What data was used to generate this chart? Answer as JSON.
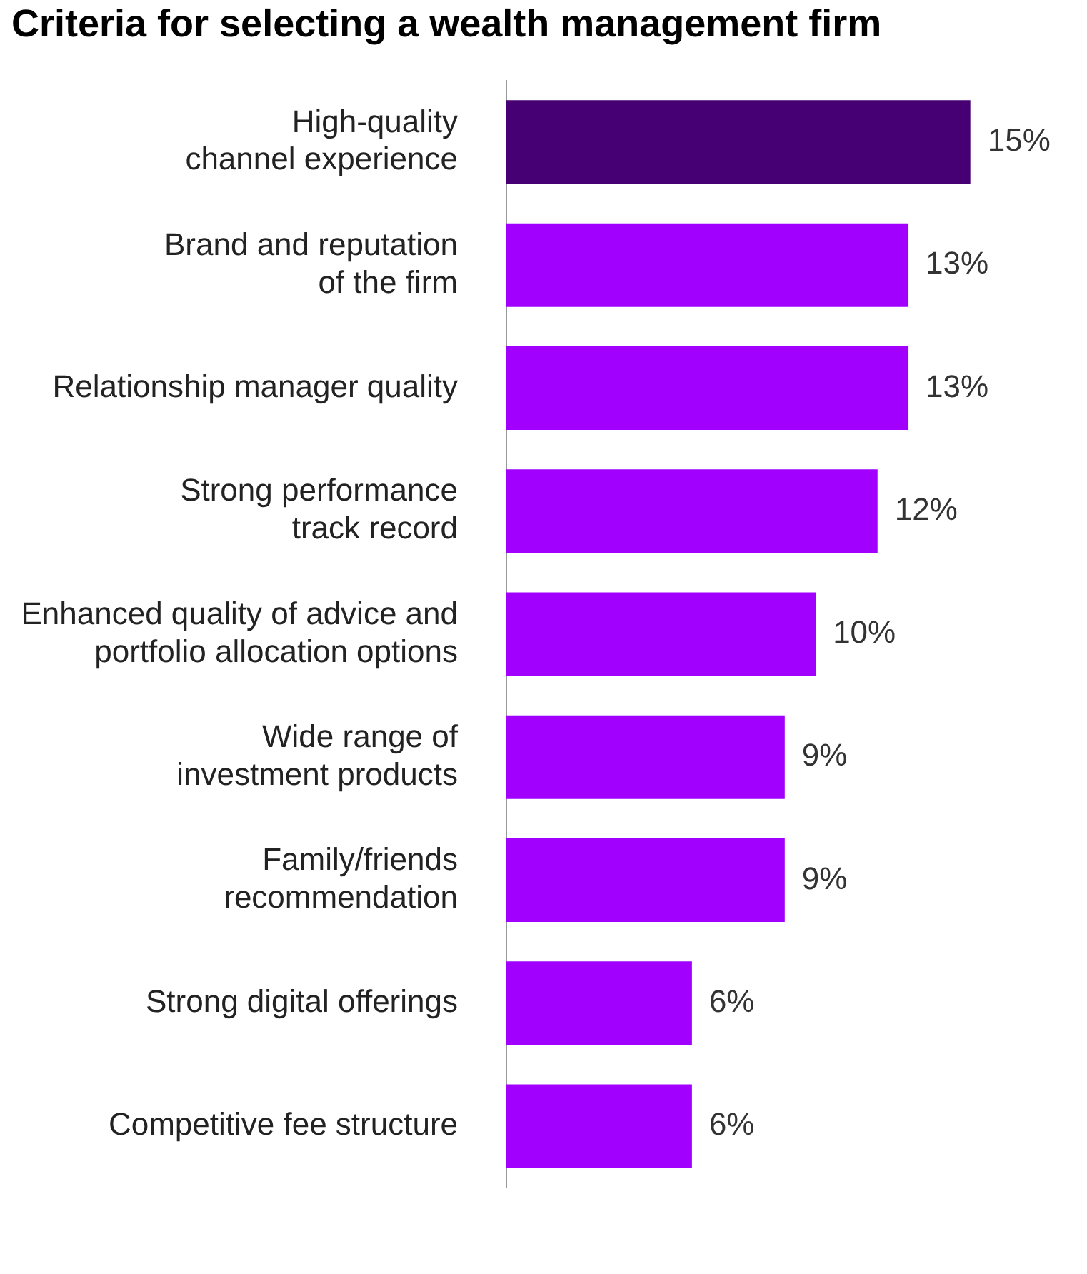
{
  "chart_data": {
    "type": "bar",
    "orientation": "horizontal",
    "title": "Criteria for selecting a wealth management firm",
    "categories": [
      "High-quality\nchannel experience",
      "Brand and reputation\nof the firm",
      "Relationship manager quality",
      "Strong performance\ntrack record",
      "Enhanced quality of advice and\nportfolio allocation options",
      "Wide range of\ninvestment products",
      "Family/friends\nrecommendation",
      "Strong digital offerings",
      "Competitive fee structure"
    ],
    "values": [
      15,
      13,
      13,
      12,
      10,
      9,
      9,
      6,
      6
    ],
    "colors": [
      "#460073",
      "#a100ff",
      "#a100ff",
      "#a100ff",
      "#a100ff",
      "#a100ff",
      "#a100ff",
      "#a100ff",
      "#a100ff"
    ],
    "value_labels": [
      "15%",
      "13%",
      "13%",
      "12%",
      "10%",
      "9%",
      "9%",
      "6%",
      "6%"
    ],
    "legend": false
  }
}
